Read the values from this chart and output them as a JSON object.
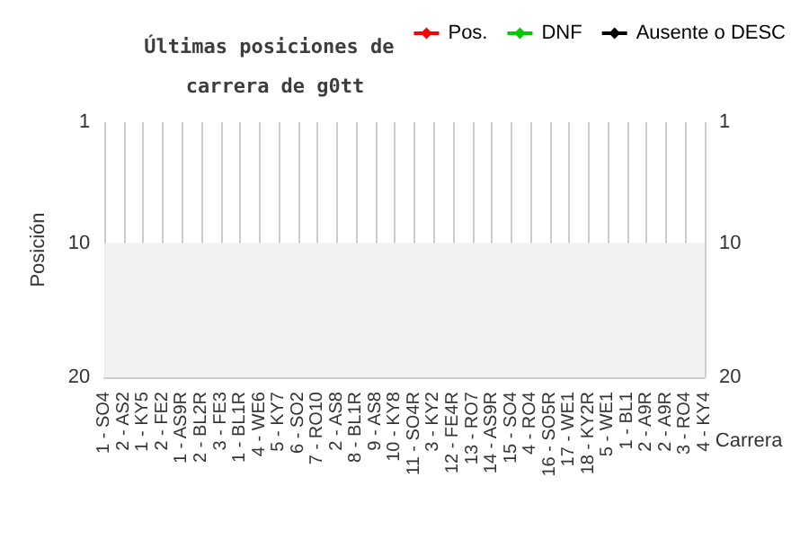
{
  "chart_data": {
    "type": "line",
    "title": "Últimas posiciones de carrera de g0tt",
    "xlabel": "Carrera",
    "ylabel": "Posición",
    "categories": [
      "1 - SO4",
      "2 - AS2",
      "1 - KY5",
      "2 - FE2",
      "1 - AS9R",
      "2 - BL2R",
      "3 - FE3",
      "1 - BL1R",
      "4 - WE6",
      "5 - KY7",
      "6 - SO2",
      "7 - RO10",
      "2 - AS8",
      "8 - BL1R",
      "9 - AS8",
      "10 - KY8",
      "11 - SO4R",
      "3 - KY2",
      "12 - FE4R",
      "13 - RO7",
      "14 - AS9R",
      "15 - SO4",
      "4 - RO4",
      "16 - SO5R",
      "17 - WE1",
      "18 - KY2R",
      "5 - WE1",
      "1 - BL1",
      "2 - A9R",
      "2 - A9R",
      "3 - RO4",
      "4 - KY4"
    ],
    "series": [
      {
        "name": "Pos.",
        "color": "#ff0000",
        "values": [
          null,
          null,
          null,
          null,
          null,
          null,
          null,
          null,
          null,
          null,
          null,
          null,
          null,
          null,
          null,
          null,
          null,
          null,
          null,
          null,
          null,
          null,
          null,
          null,
          null,
          null,
          null,
          null,
          null,
          null,
          null,
          null
        ]
      },
      {
        "name": "DNF",
        "color": "#00cc00",
        "values": [
          null,
          null,
          null,
          null,
          null,
          null,
          null,
          null,
          null,
          null,
          null,
          null,
          null,
          null,
          null,
          null,
          null,
          null,
          null,
          null,
          null,
          null,
          null,
          null,
          null,
          null,
          null,
          null,
          null,
          null,
          null,
          null
        ]
      },
      {
        "name": "Ausente o DESC",
        "color": "#000000",
        "values": [
          null,
          null,
          null,
          null,
          null,
          null,
          null,
          null,
          null,
          null,
          null,
          null,
          null,
          null,
          null,
          null,
          null,
          null,
          null,
          null,
          null,
          null,
          null,
          null,
          null,
          null,
          null,
          null,
          null,
          null,
          null,
          null
        ]
      }
    ],
    "ylim": [
      20,
      1
    ],
    "yticks": [
      1,
      10,
      20
    ],
    "y2lim": [
      20,
      1
    ],
    "y2ticks": [
      1,
      10,
      20
    ],
    "bands": [
      {
        "axis": "y",
        "from": 10,
        "to": 20,
        "color": "#f2f2f2"
      }
    ],
    "grid": "x",
    "legend": "top right",
    "marker": "diamond",
    "line_style": "solid"
  }
}
